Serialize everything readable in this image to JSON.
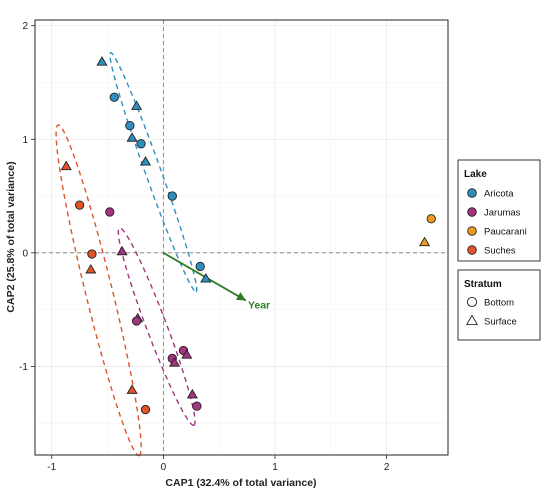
{
  "chart_data": {
    "type": "scatter",
    "xlabel": "CAP1 (32.4% of total variance)",
    "ylabel": "CAP2 (25.8% of total variance)",
    "xlim": [
      -1.15,
      2.55
    ],
    "ylim": [
      -1.78,
      2.05
    ],
    "x_ticks": [
      -1,
      0,
      1,
      2
    ],
    "y_ticks": [
      -1,
      0,
      1,
      2
    ],
    "grid": true,
    "reference_lines": {
      "x": 0,
      "y": 0,
      "style": "dashed"
    },
    "colors": {
      "Aricota": "#2e8fbf",
      "Jarumas": "#a3347f",
      "Paucarani": "#ef9a1a",
      "Suches": "#e0532b",
      "arrow": "#2e7d24"
    },
    "legends": [
      {
        "title": "Lake",
        "items": [
          "Aricota",
          "Jarumas",
          "Paucarani",
          "Suches"
        ],
        "placement": "right"
      },
      {
        "title": "Stratum",
        "items": [
          "Bottom",
          "Surface"
        ],
        "placement": "right"
      }
    ],
    "series": [
      {
        "name": "Aricota",
        "points": [
          {
            "x": -0.55,
            "y": 1.68,
            "stratum": "Surface"
          },
          {
            "x": -0.44,
            "y": 1.37,
            "stratum": "Bottom"
          },
          {
            "x": -0.24,
            "y": 1.29,
            "stratum": "Surface"
          },
          {
            "x": -0.3,
            "y": 1.12,
            "stratum": "Bottom"
          },
          {
            "x": -0.28,
            "y": 1.01,
            "stratum": "Surface"
          },
          {
            "x": -0.2,
            "y": 0.96,
            "stratum": "Bottom"
          },
          {
            "x": -0.16,
            "y": 0.8,
            "stratum": "Surface"
          },
          {
            "x": 0.08,
            "y": 0.5,
            "stratum": "Bottom"
          },
          {
            "x": 0.33,
            "y": -0.12,
            "stratum": "Bottom"
          },
          {
            "x": 0.38,
            "y": -0.23,
            "stratum": "Surface"
          }
        ]
      },
      {
        "name": "Jarumas",
        "points": [
          {
            "x": -0.48,
            "y": 0.36,
            "stratum": "Bottom"
          },
          {
            "x": -0.37,
            "y": 0.01,
            "stratum": "Surface"
          },
          {
            "x": -0.23,
            "y": -0.58,
            "stratum": "Surface"
          },
          {
            "x": -0.24,
            "y": -0.6,
            "stratum": "Bottom"
          },
          {
            "x": 0.08,
            "y": -0.93,
            "stratum": "Bottom"
          },
          {
            "x": 0.1,
            "y": -0.97,
            "stratum": "Surface"
          },
          {
            "x": 0.18,
            "y": -0.86,
            "stratum": "Bottom"
          },
          {
            "x": 0.21,
            "y": -0.9,
            "stratum": "Surface"
          },
          {
            "x": 0.26,
            "y": -1.25,
            "stratum": "Surface"
          },
          {
            "x": 0.3,
            "y": -1.35,
            "stratum": "Bottom"
          }
        ]
      },
      {
        "name": "Paucarani",
        "points": [
          {
            "x": 2.4,
            "y": 0.3,
            "stratum": "Bottom"
          },
          {
            "x": 2.34,
            "y": 0.09,
            "stratum": "Surface"
          }
        ]
      },
      {
        "name": "Suches",
        "points": [
          {
            "x": -0.87,
            "y": 0.76,
            "stratum": "Surface"
          },
          {
            "x": -0.75,
            "y": 0.42,
            "stratum": "Bottom"
          },
          {
            "x": -0.64,
            "y": -0.01,
            "stratum": "Bottom"
          },
          {
            "x": -0.65,
            "y": -0.15,
            "stratum": "Surface"
          },
          {
            "x": -0.28,
            "y": -1.21,
            "stratum": "Surface"
          },
          {
            "x": -0.16,
            "y": -1.38,
            "stratum": "Bottom"
          }
        ]
      }
    ],
    "ellipses": [
      {
        "name": "Aricota",
        "cx": -0.09,
        "cy": 0.71,
        "angle_deg": -70,
        "a": 1.12,
        "b": 0.07
      },
      {
        "name": "Jarumas",
        "cx": -0.06,
        "cy": -0.65,
        "angle_deg": -69,
        "a": 0.93,
        "b": 0.09
      },
      {
        "name": "Suches",
        "cx": -0.58,
        "cy": -0.33,
        "angle_deg": -76,
        "a": 1.5,
        "b": 0.12
      }
    ],
    "arrow": {
      "label": "Year",
      "x_start": 0,
      "y_start": 0,
      "x_end": 0.74,
      "y_end": -0.42
    }
  }
}
